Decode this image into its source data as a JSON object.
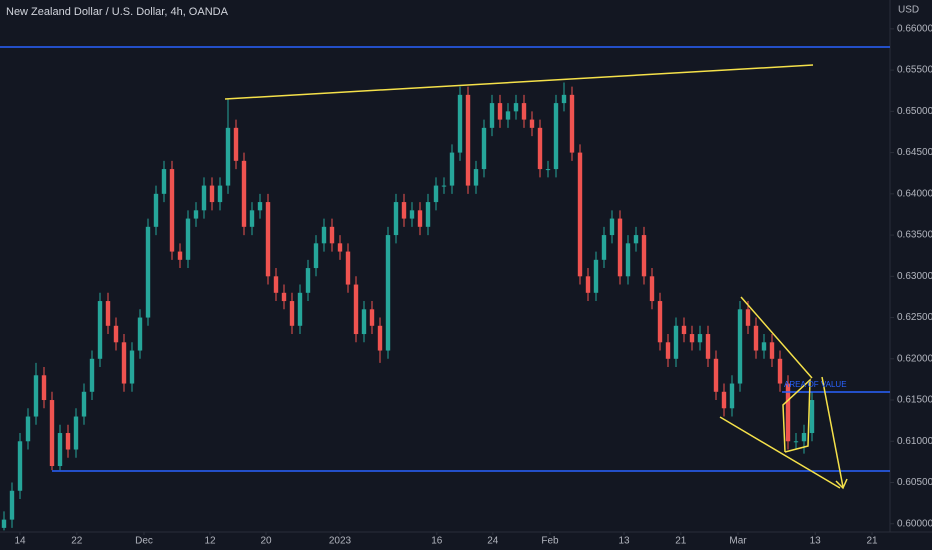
{
  "chart_data": {
    "type": "candlestick",
    "title": "New Zealand Dollar / U.S. Dollar, 4h, OANDA",
    "currency": "USD",
    "annotations": [
      "AREA OF VALUE"
    ],
    "up_color": "#26a69a",
    "down_color": "#ef5350",
    "grid": false,
    "xlim": [
      -0.5,
      109.5
    ],
    "xticks": [
      {
        "value": 2,
        "label": "14"
      },
      {
        "value": 9.1,
        "label": "22"
      },
      {
        "value": 17.5,
        "label": "Dec"
      },
      {
        "value": 25.75,
        "label": "12"
      },
      {
        "value": 32.75,
        "label": "20"
      },
      {
        "value": 42,
        "label": "2023"
      },
      {
        "value": 54.1,
        "label": "16"
      },
      {
        "value": 61.1,
        "label": "24"
      },
      {
        "value": 68.25,
        "label": "Feb"
      },
      {
        "value": 77.5,
        "label": "13"
      },
      {
        "value": 84.6,
        "label": "21"
      },
      {
        "value": 91.75,
        "label": "Mar"
      },
      {
        "value": 101.4,
        "label": "13"
      },
      {
        "value": 108.5,
        "label": "21"
      }
    ],
    "ylim": [
      0.599,
      0.6635
    ],
    "yticks": [
      {
        "value": 0.6,
        "label": "0.60000"
      },
      {
        "value": 0.605,
        "label": "0.60500"
      },
      {
        "value": 0.61,
        "label": "0.61000"
      },
      {
        "value": 0.615,
        "label": "0.61500"
      },
      {
        "value": 0.62,
        "label": "0.62000"
      },
      {
        "value": 0.625,
        "label": "0.62500"
      },
      {
        "value": 0.63,
        "label": "0.63000"
      },
      {
        "value": 0.635,
        "label": "0.63500"
      },
      {
        "value": 0.64,
        "label": "0.64000"
      },
      {
        "value": 0.645,
        "label": "0.64500"
      },
      {
        "value": 0.65,
        "label": "0.65000"
      },
      {
        "value": 0.655,
        "label": "0.65500"
      },
      {
        "value": 0.66,
        "label": "0.66000"
      }
    ],
    "x": [
      0,
      1,
      2,
      3,
      4,
      5,
      6,
      7,
      8,
      9,
      10,
      11,
      12,
      13,
      14,
      15,
      16,
      17,
      18,
      19,
      20,
      21,
      22,
      23,
      24,
      25,
      26,
      27,
      28,
      29,
      30,
      31,
      32,
      33,
      34,
      35,
      36,
      37,
      38,
      39,
      40,
      41,
      42,
      43,
      44,
      45,
      46,
      47,
      48,
      49,
      50,
      51,
      52,
      53,
      54,
      55,
      56,
      57,
      58,
      59,
      60,
      61,
      62,
      63,
      64,
      65,
      66,
      67,
      68,
      69,
      70,
      71,
      72,
      73,
      74,
      75,
      76,
      77,
      78,
      79,
      80,
      81,
      82,
      83,
      84,
      85,
      86,
      87,
      88,
      89,
      90,
      91,
      92,
      93,
      94,
      95,
      96,
      97,
      98,
      99,
      100,
      101
    ],
    "open": [
      0.5995,
      0.6005,
      0.604,
      0.61,
      0.613,
      0.618,
      0.615,
      0.607,
      0.611,
      0.609,
      0.613,
      0.616,
      0.62,
      0.627,
      0.624,
      0.622,
      0.617,
      0.621,
      0.625,
      0.636,
      0.64,
      0.643,
      0.633,
      0.632,
      0.637,
      0.638,
      0.641,
      0.639,
      0.641,
      0.648,
      0.644,
      0.636,
      0.638,
      0.639,
      0.63,
      0.628,
      0.627,
      0.624,
      0.628,
      0.631,
      0.634,
      0.636,
      0.634,
      0.633,
      0.629,
      0.623,
      0.626,
      0.624,
      0.621,
      0.635,
      0.639,
      0.637,
      0.638,
      0.636,
      0.639,
      0.641,
      0.641,
      0.645,
      0.652,
      0.641,
      0.643,
      0.648,
      0.651,
      0.649,
      0.65,
      0.651,
      0.649,
      0.648,
      0.643,
      0.643,
      0.651,
      0.652,
      0.645,
      0.63,
      0.628,
      0.632,
      0.635,
      0.637,
      0.63,
      0.634,
      0.635,
      0.63,
      0.627,
      0.622,
      0.62,
      0.624,
      0.623,
      0.622,
      0.623,
      0.62,
      0.616,
      0.614,
      0.617,
      0.626,
      0.624,
      0.621,
      0.622,
      0.62,
      0.617,
      0.61,
      0.61,
      0.611
    ],
    "high": [
      0.6015,
      0.605,
      0.611,
      0.614,
      0.6195,
      0.619,
      0.616,
      0.612,
      0.612,
      0.614,
      0.617,
      0.621,
      0.628,
      0.628,
      0.625,
      0.623,
      0.622,
      0.626,
      0.637,
      0.641,
      0.644,
      0.644,
      0.634,
      0.638,
      0.639,
      0.642,
      0.642,
      0.642,
      0.6515,
      0.649,
      0.645,
      0.639,
      0.64,
      0.64,
      0.631,
      0.629,
      0.628,
      0.629,
      0.632,
      0.635,
      0.637,
      0.637,
      0.635,
      0.634,
      0.63,
      0.627,
      0.627,
      0.625,
      0.636,
      0.64,
      0.64,
      0.639,
      0.639,
      0.64,
      0.642,
      0.642,
      0.646,
      0.653,
      0.653,
      0.644,
      0.649,
      0.652,
      0.652,
      0.651,
      0.652,
      0.652,
      0.65,
      0.649,
      0.644,
      0.652,
      0.6535,
      0.653,
      0.646,
      0.631,
      0.633,
      0.636,
      0.638,
      0.638,
      0.635,
      0.636,
      0.636,
      0.631,
      0.628,
      0.623,
      0.625,
      0.625,
      0.624,
      0.624,
      0.624,
      0.621,
      0.617,
      0.618,
      0.627,
      0.627,
      0.625,
      0.623,
      0.623,
      0.621,
      0.618,
      0.611,
      0.612,
      0.616
    ],
    "low": [
      0.5992,
      0.5995,
      0.603,
      0.609,
      0.612,
      0.614,
      0.6065,
      0.6065,
      0.608,
      0.608,
      0.612,
      0.615,
      0.619,
      0.623,
      0.621,
      0.616,
      0.616,
      0.62,
      0.624,
      0.635,
      0.639,
      0.632,
      0.631,
      0.631,
      0.636,
      0.637,
      0.638,
      0.638,
      0.64,
      0.643,
      0.635,
      0.635,
      0.637,
      0.629,
      0.627,
      0.626,
      0.623,
      0.623,
      0.627,
      0.63,
      0.633,
      0.633,
      0.632,
      0.628,
      0.622,
      0.622,
      0.623,
      0.6195,
      0.62,
      0.634,
      0.636,
      0.636,
      0.635,
      0.635,
      0.638,
      0.64,
      0.64,
      0.644,
      0.64,
      0.64,
      0.642,
      0.647,
      0.648,
      0.648,
      0.649,
      0.648,
      0.647,
      0.642,
      0.642,
      0.642,
      0.65,
      0.644,
      0.629,
      0.627,
      0.627,
      0.631,
      0.634,
      0.629,
      0.629,
      0.633,
      0.629,
      0.626,
      0.621,
      0.619,
      0.619,
      0.622,
      0.621,
      0.621,
      0.619,
      0.615,
      0.613,
      0.613,
      0.616,
      0.623,
      0.62,
      0.62,
      0.619,
      0.616,
      0.609,
      0.609,
      0.6085,
      0.61
    ],
    "close": [
      0.6005,
      0.604,
      0.61,
      0.613,
      0.618,
      0.615,
      0.607,
      0.611,
      0.609,
      0.613,
      0.616,
      0.62,
      0.627,
      0.624,
      0.622,
      0.617,
      0.621,
      0.625,
      0.636,
      0.64,
      0.643,
      0.633,
      0.632,
      0.637,
      0.638,
      0.641,
      0.639,
      0.641,
      0.648,
      0.644,
      0.636,
      0.638,
      0.639,
      0.63,
      0.628,
      0.627,
      0.624,
      0.628,
      0.631,
      0.634,
      0.636,
      0.634,
      0.633,
      0.629,
      0.623,
      0.626,
      0.624,
      0.621,
      0.635,
      0.639,
      0.637,
      0.638,
      0.636,
      0.639,
      0.641,
      0.641,
      0.645,
      0.652,
      0.641,
      0.643,
      0.648,
      0.651,
      0.649,
      0.65,
      0.651,
      0.649,
      0.648,
      0.643,
      0.643,
      0.651,
      0.652,
      0.645,
      0.63,
      0.628,
      0.632,
      0.635,
      0.637,
      0.63,
      0.634,
      0.635,
      0.63,
      0.627,
      0.622,
      0.62,
      0.624,
      0.623,
      0.622,
      0.623,
      0.62,
      0.616,
      0.614,
      0.617,
      0.626,
      0.624,
      0.621,
      0.622,
      0.62,
      0.617,
      0.61,
      0.61,
      0.611,
      0.615
    ]
  }
}
